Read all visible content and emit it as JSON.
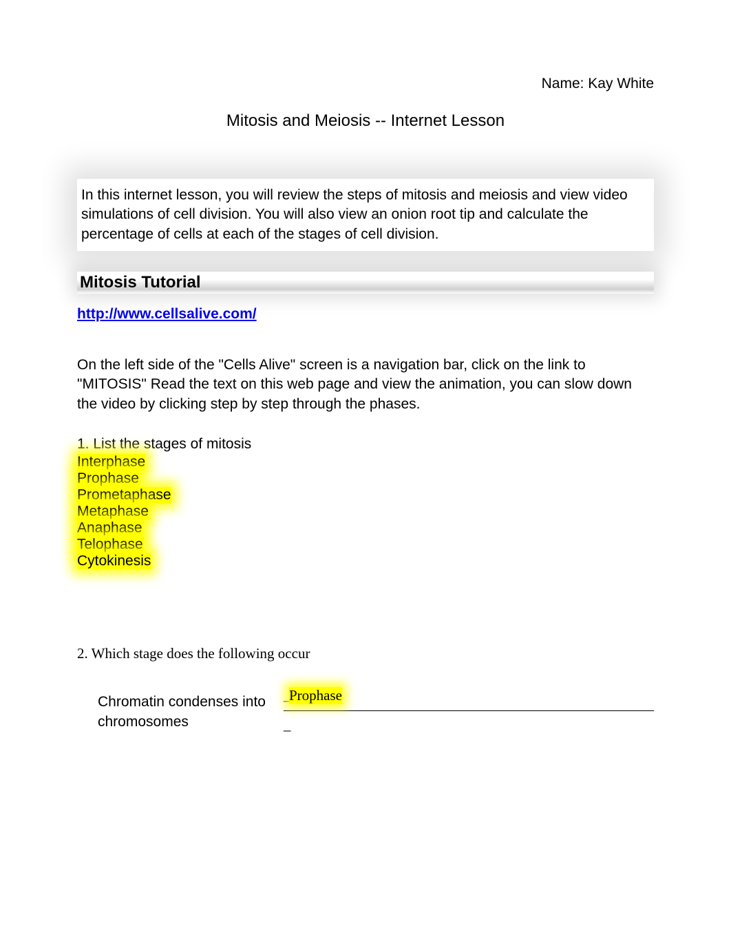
{
  "colors": {
    "background": "#ffffff",
    "text": "#000000",
    "link": "#0000ee",
    "highlight": "#ffff00",
    "highlight_glow": "rgba(255,255,0,0.85)",
    "shadow": "rgba(0,0,0,0.12)",
    "heading_gradient_mid": "#d0d0d0"
  },
  "fonts": {
    "body": "Verdana, Geneva, sans-serif",
    "serif": "Georgia, 'Times New Roman', serif",
    "body_size": 21,
    "title_size": 24,
    "heading_size": 24
  },
  "header": {
    "name_label": "Name: Kay White",
    "title": "Mitosis and Meiosis -- Internet Lesson"
  },
  "intro": "In this internet lesson, you will review the steps of mitosis and meiosis and view video simulations of cell division. You will also view an onion root tip and calculate the percentage of cells at each of the stages of cell division.",
  "tutorial": {
    "heading": "Mitosis Tutorial",
    "link": "http://www.cellsalive.com/",
    "instructions": "On the left side of the \"Cells Alive\" screen is a navigation bar, click on the link to \"MITOSIS\" Read the text on this web page and view the animation, you can slow down the video by clicking step by step through the phases."
  },
  "q1": {
    "prompt": "1. List the stages of mitosis",
    "stages": [
      "Interphase",
      "Prophase",
      "Prometaphase",
      "Metaphase",
      "Anaphase",
      "Telophase",
      "Cytokinesis"
    ]
  },
  "q2": {
    "prompt": "2. Which stage does the following occur",
    "item_label": "Chromatin condenses into chromosomes",
    "underscore": "_",
    "answer": "Prophase"
  }
}
